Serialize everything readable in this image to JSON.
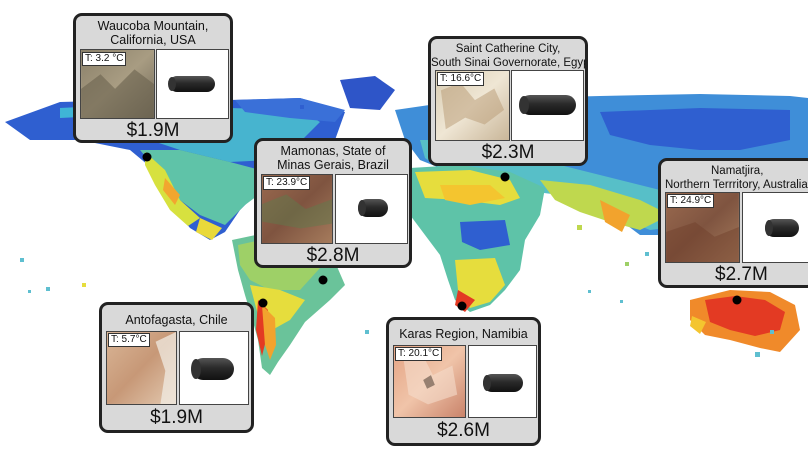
{
  "map": {
    "name": "world-temperature-map"
  },
  "locations": [
    {
      "id": "waucoba",
      "title_lines": [
        "Waucoba Mountain,",
        "California, USA"
      ],
      "temp": "T: 3.2 °C",
      "price": "$1.9M",
      "thumb_style": "mountain"
    },
    {
      "id": "saint-catherine",
      "title_lines": [
        "Saint Catherine City,",
        "South Sinai Governorate, Egypt"
      ],
      "temp": "T: 16.6°C",
      "price": "$2.3M",
      "thumb_style": "pale"
    },
    {
      "id": "mamonas",
      "title_lines": [
        "Mamonas, State of",
        "Minas Gerais, Brazil"
      ],
      "temp": "T: 23.9°C",
      "price": "$2.8M",
      "thumb_style": "red-brown"
    },
    {
      "id": "namatjira",
      "title_lines": [
        "Namatjira,",
        "Northern Terrritory, Australia"
      ],
      "temp": "T: 24.9°C",
      "price": "$2.7M",
      "thumb_style": "red-brown"
    },
    {
      "id": "antofagasta",
      "title_lines": [
        "Antofagasta, Chile"
      ],
      "temp": "T: 5.7°C",
      "price": "$1.9M",
      "thumb_style": "sand"
    },
    {
      "id": "karas",
      "title_lines": [
        "Karas Region, Namibia"
      ],
      "temp": "T: 20.1°C",
      "price": "$2.6M",
      "thumb_style": "salmon"
    }
  ]
}
